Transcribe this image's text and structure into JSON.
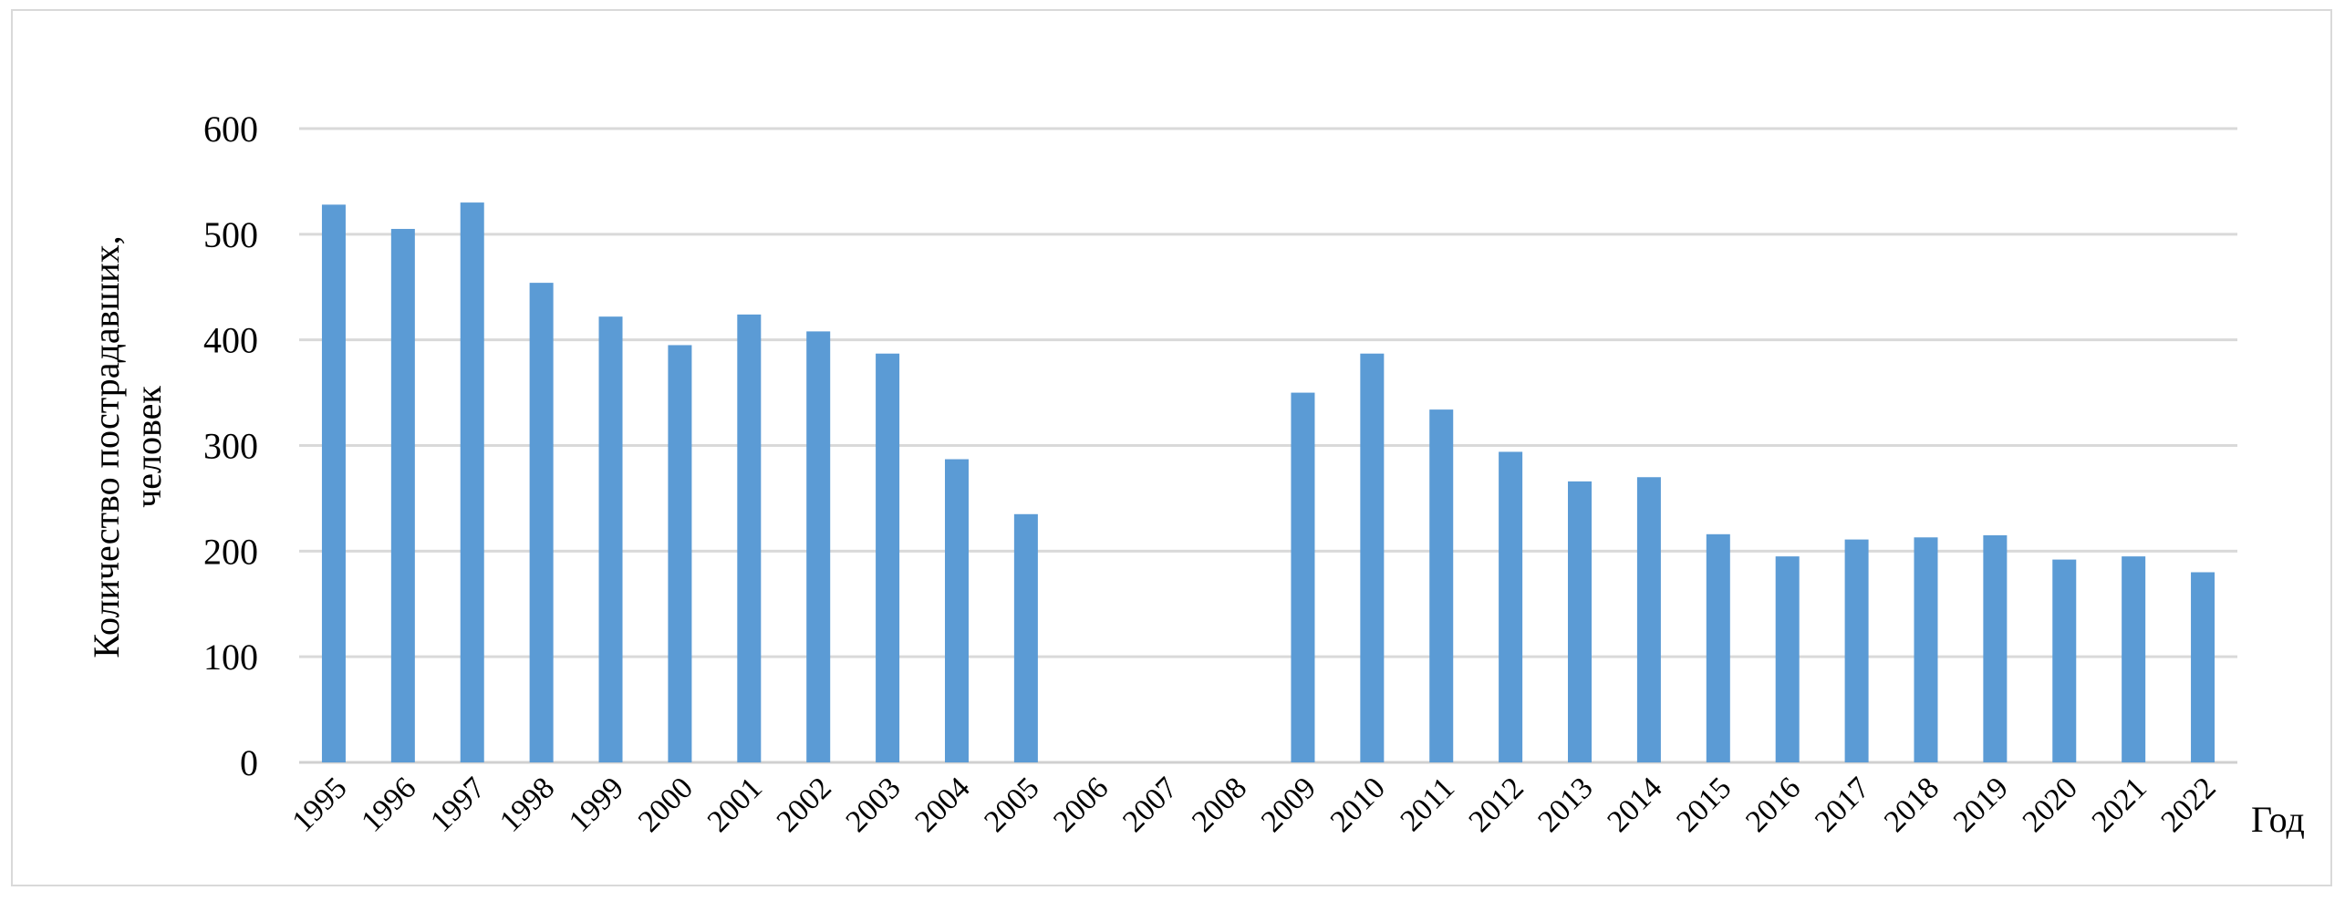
{
  "chart_data": {
    "type": "bar",
    "title": "",
    "xlabel": "Год",
    "ylabel": "Количество пострадавших, человек",
    "ylabel_lines": [
      "Количество пострадавших,",
      "человек"
    ],
    "ylim": [
      0,
      600
    ],
    "yticks": [
      0,
      100,
      200,
      300,
      400,
      500,
      600
    ],
    "grid": true,
    "legend": "none",
    "bar_color": "#5b9bd5",
    "categories": [
      "1995",
      "1996",
      "1997",
      "1998",
      "1999",
      "2000",
      "2001",
      "2002",
      "2003",
      "2004",
      "2005",
      "2006",
      "2007",
      "2008",
      "2009",
      "2010",
      "2011",
      "2012",
      "2013",
      "2014",
      "2015",
      "2016",
      "2017",
      "2018",
      "2019",
      "2020",
      "2021",
      "2022"
    ],
    "values": [
      528,
      505,
      530,
      454,
      422,
      395,
      424,
      408,
      387,
      287,
      235,
      null,
      null,
      null,
      350,
      387,
      334,
      294,
      266,
      270,
      216,
      195,
      211,
      213,
      215,
      192,
      195,
      180
    ]
  }
}
